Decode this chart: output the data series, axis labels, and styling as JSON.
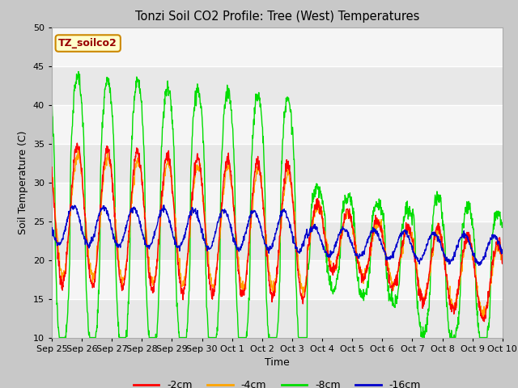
{
  "title": "Tonzi Soil CO2 Profile: Tree (West) Temperatures",
  "xlabel": "Time",
  "ylabel": "Soil Temperature (C)",
  "ylim": [
    10,
    50
  ],
  "yticks": [
    10,
    15,
    20,
    25,
    30,
    35,
    40,
    45,
    50
  ],
  "legend_label": "TZ_soilco2",
  "series_labels": [
    "-2cm",
    "-4cm",
    "-8cm",
    "-16cm"
  ],
  "series_colors": [
    "#ff0000",
    "#ffa500",
    "#00dd00",
    "#0000cc"
  ],
  "fig_facecolor": "#c8c8c8",
  "ax_facecolor": "#ebebeb",
  "grid_color": "#ffffff",
  "xtick_labels": [
    "Sep 25",
    "Sep 26",
    "Sep 27",
    "Sep 28",
    "Sep 29",
    "Sep 30",
    "Oct 1",
    "Oct 2",
    "Oct 3",
    "Oct 4",
    "Oct 5",
    "Oct 6",
    "Oct 7",
    "Oct 8",
    "Oct 9",
    "Oct 10"
  ],
  "n_days": 15,
  "pts_per_day": 96
}
